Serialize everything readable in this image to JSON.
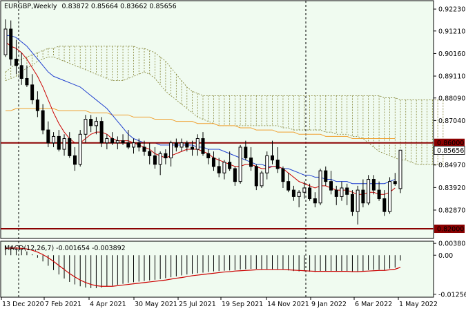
{
  "header": {
    "symbol": "EURGBP,Weekly",
    "ohlc": "0.83872 0.85664 0.83662 0.85656"
  },
  "macd": {
    "label": "MACD(12,26,7) -0.001654 -0.003892"
  },
  "colors": {
    "background": "#f0fbf0",
    "candle_up": "#ffffff",
    "candle_down": "#000000",
    "tenkan": "#cc0000",
    "kijun": "#2040d0",
    "ma_long": "#f0a030",
    "cloud": "#808030",
    "level": "#8b0000",
    "macd_signal": "#cc0000"
  },
  "chart_data": [
    {
      "type": "candlestick",
      "title": "EURGBP,Weekly",
      "ylim": [
        0.8155,
        0.9262
      ],
      "y_ticks": [
        "0.92230",
        "0.91210",
        "0.90160",
        "0.89110",
        "0.88090",
        "0.87040",
        "0.86000",
        "0.85656",
        "0.84970",
        "0.83920",
        "0.82870",
        "0.82000"
      ],
      "x_ticks": [
        "13 Dec 2020",
        "7 Feb 2021",
        "4 Apr 2021",
        "30 May 2021",
        "25 Jul 2021",
        "19 Sep 2021",
        "14 Nov 2021",
        "9 Jan 2022",
        "6 Mar 2022",
        "1 May 2022"
      ],
      "levels": [
        {
          "value": 0.86,
          "label": "0.86000"
        },
        {
          "value": 0.82,
          "label": "0.82000"
        }
      ],
      "current_price": {
        "value": 0.85656,
        "label": "0.85656"
      },
      "series_ohlc": [
        [
          0.901,
          0.9175,
          0.9,
          0.913
        ],
        [
          0.913,
          0.917,
          0.896,
          0.899
        ],
        [
          0.899,
          0.908,
          0.892,
          0.896
        ],
        [
          0.896,
          0.902,
          0.887,
          0.89
        ],
        [
          0.89,
          0.896,
          0.886,
          0.887
        ],
        [
          0.887,
          0.892,
          0.878,
          0.88
        ],
        [
          0.88,
          0.884,
          0.872,
          0.875
        ],
        [
          0.875,
          0.878,
          0.864,
          0.866
        ],
        [
          0.866,
          0.87,
          0.858,
          0.86
        ],
        [
          0.86,
          0.865,
          0.858,
          0.863
        ],
        [
          0.863,
          0.866,
          0.856,
          0.857
        ],
        [
          0.857,
          0.864,
          0.854,
          0.862
        ],
        [
          0.862,
          0.865,
          0.853,
          0.854
        ],
        [
          0.854,
          0.858,
          0.847,
          0.85
        ],
        [
          0.85,
          0.866,
          0.849,
          0.864
        ],
        [
          0.864,
          0.873,
          0.86,
          0.871
        ],
        [
          0.871,
          0.873,
          0.865,
          0.868
        ],
        [
          0.868,
          0.872,
          0.864,
          0.87
        ],
        [
          0.87,
          0.872,
          0.858,
          0.86
        ],
        [
          0.86,
          0.864,
          0.857,
          0.862
        ],
        [
          0.862,
          0.865,
          0.859,
          0.86
        ],
        [
          0.86,
          0.863,
          0.857,
          0.861
        ],
        [
          0.861,
          0.864,
          0.859,
          0.86
        ],
        [
          0.86,
          0.866,
          0.857,
          0.858
        ],
        [
          0.858,
          0.862,
          0.855,
          0.86
        ],
        [
          0.86,
          0.862,
          0.856,
          0.858
        ],
        [
          0.858,
          0.861,
          0.854,
          0.856
        ],
        [
          0.856,
          0.86,
          0.85,
          0.854
        ],
        [
          0.854,
          0.858,
          0.848,
          0.85
        ],
        [
          0.85,
          0.856,
          0.845,
          0.855
        ],
        [
          0.855,
          0.857,
          0.85,
          0.853
        ],
        [
          0.853,
          0.861,
          0.849,
          0.86
        ],
        [
          0.86,
          0.862,
          0.856,
          0.858
        ],
        [
          0.858,
          0.862,
          0.856,
          0.86
        ],
        [
          0.86,
          0.861,
          0.856,
          0.858
        ],
        [
          0.858,
          0.861,
          0.854,
          0.857
        ],
        [
          0.857,
          0.864,
          0.854,
          0.862
        ],
        [
          0.862,
          0.865,
          0.854,
          0.855
        ],
        [
          0.855,
          0.857,
          0.85,
          0.853
        ],
        [
          0.853,
          0.856,
          0.847,
          0.849
        ],
        [
          0.849,
          0.853,
          0.844,
          0.846
        ],
        [
          0.846,
          0.852,
          0.843,
          0.851
        ],
        [
          0.851,
          0.856,
          0.847,
          0.848
        ],
        [
          0.848,
          0.849,
          0.84,
          0.842
        ],
        [
          0.842,
          0.859,
          0.841,
          0.858
        ],
        [
          0.858,
          0.861,
          0.852,
          0.853
        ],
        [
          0.853,
          0.858,
          0.847,
          0.849
        ],
        [
          0.849,
          0.85,
          0.838,
          0.84
        ],
        [
          0.84,
          0.847,
          0.839,
          0.846
        ],
        [
          0.846,
          0.856,
          0.843,
          0.854
        ],
        [
          0.854,
          0.861,
          0.85,
          0.852
        ],
        [
          0.852,
          0.858,
          0.846,
          0.848
        ],
        [
          0.848,
          0.849,
          0.839,
          0.842
        ],
        [
          0.842,
          0.846,
          0.837,
          0.838
        ],
        [
          0.838,
          0.84,
          0.833,
          0.835
        ],
        [
          0.835,
          0.838,
          0.83,
          0.837
        ],
        [
          0.837,
          0.842,
          0.834,
          0.839
        ],
        [
          0.839,
          0.841,
          0.833,
          0.834
        ],
        [
          0.834,
          0.837,
          0.83,
          0.832
        ],
        [
          0.832,
          0.848,
          0.831,
          0.847
        ],
        [
          0.847,
          0.849,
          0.84,
          0.842
        ],
        [
          0.842,
          0.847,
          0.836,
          0.838
        ],
        [
          0.838,
          0.84,
          0.831,
          0.835
        ],
        [
          0.835,
          0.842,
          0.833,
          0.839
        ],
        [
          0.839,
          0.841,
          0.831,
          0.836
        ],
        [
          0.836,
          0.838,
          0.826,
          0.828
        ],
        [
          0.828,
          0.84,
          0.822,
          0.838
        ],
        [
          0.838,
          0.843,
          0.83,
          0.832
        ],
        [
          0.832,
          0.845,
          0.831,
          0.843
        ],
        [
          0.843,
          0.845,
          0.836,
          0.838
        ],
        [
          0.838,
          0.842,
          0.833,
          0.834
        ],
        [
          0.834,
          0.838,
          0.826,
          0.828
        ],
        [
          0.828,
          0.844,
          0.827,
          0.842
        ],
        [
          0.842,
          0.846,
          0.84,
          0.841
        ],
        [
          0.8387,
          0.8566,
          0.8366,
          0.8566
        ]
      ],
      "tenkan": [
        0.907,
        0.905,
        0.904,
        0.902,
        0.899,
        0.895,
        0.891,
        0.886,
        0.88,
        0.874,
        0.869,
        0.865,
        0.862,
        0.86,
        0.86,
        0.862,
        0.864,
        0.865,
        0.865,
        0.864,
        0.862,
        0.861,
        0.861,
        0.861,
        0.86,
        0.859,
        0.858,
        0.857,
        0.855,
        0.854,
        0.853,
        0.854,
        0.855,
        0.856,
        0.857,
        0.857,
        0.857,
        0.856,
        0.855,
        0.853,
        0.852,
        0.851,
        0.85,
        0.849,
        0.849,
        0.85,
        0.85,
        0.849,
        0.848,
        0.848,
        0.849,
        0.849,
        0.848,
        0.846,
        0.844,
        0.842,
        0.841,
        0.84,
        0.839,
        0.84,
        0.84,
        0.839,
        0.838,
        0.838,
        0.838,
        0.837,
        0.836,
        0.836,
        0.837,
        0.837,
        0.836,
        0.836,
        0.837,
        0.839
      ],
      "kijun": [
        0.91,
        0.91,
        0.909,
        0.907,
        0.905,
        0.902,
        0.899,
        0.896,
        0.893,
        0.891,
        0.89,
        0.889,
        0.888,
        0.887,
        0.886,
        0.884,
        0.882,
        0.88,
        0.878,
        0.876,
        0.873,
        0.87,
        0.867,
        0.864,
        0.862,
        0.861,
        0.86,
        0.86,
        0.86,
        0.859,
        0.859,
        0.859,
        0.859,
        0.859,
        0.859,
        0.859,
        0.858,
        0.858,
        0.857,
        0.857,
        0.857,
        0.856,
        0.855,
        0.854,
        0.853,
        0.852,
        0.851,
        0.85,
        0.85,
        0.849,
        0.849,
        0.849,
        0.848,
        0.848,
        0.847,
        0.846,
        0.845,
        0.845,
        0.844,
        0.844,
        0.843,
        0.843,
        0.842,
        0.842,
        0.842,
        0.841,
        0.841,
        0.841,
        0.841,
        0.841,
        0.841,
        0.841,
        0.842,
        0.843
      ],
      "ma_long": [
        0.875,
        0.875,
        0.876,
        0.876,
        0.876,
        0.876,
        0.876,
        0.876,
        0.876,
        0.876,
        0.875,
        0.875,
        0.875,
        0.875,
        0.875,
        0.875,
        0.874,
        0.874,
        0.874,
        0.874,
        0.873,
        0.873,
        0.873,
        0.873,
        0.872,
        0.872,
        0.872,
        0.872,
        0.871,
        0.871,
        0.871,
        0.871,
        0.87,
        0.87,
        0.87,
        0.87,
        0.869,
        0.869,
        0.869,
        0.869,
        0.868,
        0.868,
        0.868,
        0.868,
        0.867,
        0.867,
        0.867,
        0.866,
        0.866,
        0.866,
        0.866,
        0.865,
        0.865,
        0.865,
        0.865,
        0.864,
        0.864,
        0.864,
        0.864,
        0.864,
        0.863,
        0.863,
        0.863,
        0.863,
        0.863,
        0.862,
        0.862,
        0.862,
        0.862,
        0.862,
        0.862,
        0.862,
        0.862,
        0.862
      ],
      "cloud_upper": [
        0.893,
        0.895,
        0.897,
        0.899,
        0.9,
        0.901,
        0.902,
        0.903,
        0.904,
        0.904,
        0.905,
        0.905,
        0.905,
        0.905,
        0.905,
        0.905,
        0.905,
        0.905,
        0.905,
        0.905,
        0.905,
        0.905,
        0.905,
        0.905,
        0.905,
        0.904,
        0.904,
        0.903,
        0.902,
        0.9,
        0.898,
        0.895,
        0.892,
        0.889,
        0.886,
        0.884,
        0.883,
        0.882,
        0.882,
        0.882,
        0.882,
        0.882,
        0.882,
        0.882,
        0.882,
        0.882,
        0.882,
        0.882,
        0.882,
        0.882,
        0.882,
        0.882,
        0.882,
        0.882,
        0.882,
        0.882,
        0.882,
        0.882,
        0.882,
        0.882,
        0.882,
        0.882,
        0.882,
        0.882,
        0.882,
        0.882,
        0.882,
        0.882,
        0.882,
        0.882,
        0.882,
        0.881,
        0.881,
        0.881,
        0.88,
        0.88,
        0.88,
        0.88,
        0.88,
        0.88,
        0.88,
        0.88,
        0.88
      ],
      "cloud_lower": [
        0.889,
        0.89,
        0.891,
        0.893,
        0.895,
        0.896,
        0.898,
        0.899,
        0.9,
        0.9,
        0.899,
        0.898,
        0.897,
        0.896,
        0.895,
        0.894,
        0.893,
        0.892,
        0.891,
        0.89,
        0.889,
        0.889,
        0.889,
        0.89,
        0.891,
        0.892,
        0.893,
        0.892,
        0.89,
        0.887,
        0.884,
        0.882,
        0.88,
        0.878,
        0.876,
        0.874,
        0.872,
        0.871,
        0.87,
        0.869,
        0.868,
        0.868,
        0.868,
        0.868,
        0.868,
        0.868,
        0.868,
        0.868,
        0.868,
        0.868,
        0.868,
        0.868,
        0.867,
        0.867,
        0.866,
        0.866,
        0.866,
        0.866,
        0.866,
        0.866,
        0.865,
        0.865,
        0.864,
        0.864,
        0.864,
        0.863,
        0.863,
        0.862,
        0.86,
        0.858,
        0.856,
        0.855,
        0.854,
        0.853,
        0.852,
        0.852,
        0.851,
        0.85,
        0.85,
        0.85,
        0.85,
        0.85,
        0.85
      ]
    },
    {
      "type": "bar",
      "title": "MACD(12,26,7) -0.001654 -0.003892",
      "ylim": [
        -0.0135,
        0.0045
      ],
      "y_ticks": [
        "0.003808",
        "0.00",
        "-0.012563"
      ],
      "histogram": [
        0.003,
        0.0028,
        0.0025,
        0.002,
        0.0012,
        0.0003,
        -0.0008,
        -0.002,
        -0.0034,
        -0.0048,
        -0.0062,
        -0.0075,
        -0.0086,
        -0.0094,
        -0.01,
        -0.0104,
        -0.0106,
        -0.0106,
        -0.0104,
        -0.0101,
        -0.0098,
        -0.0095,
        -0.0092,
        -0.0089,
        -0.0087,
        -0.0085,
        -0.0083,
        -0.0081,
        -0.0079,
        -0.0077,
        -0.0074,
        -0.0071,
        -0.0068,
        -0.0065,
        -0.0062,
        -0.006,
        -0.0058,
        -0.0056,
        -0.0054,
        -0.0052,
        -0.0051,
        -0.005,
        -0.0049,
        -0.0048,
        -0.0046,
        -0.0045,
        -0.0044,
        -0.0044,
        -0.0045,
        -0.0045,
        -0.0045,
        -0.0046,
        -0.0047,
        -0.0049,
        -0.0051,
        -0.0052,
        -0.0052,
        -0.0053,
        -0.0054,
        -0.0052,
        -0.0051,
        -0.0052,
        -0.0053,
        -0.0052,
        -0.0052,
        -0.0054,
        -0.0052,
        -0.0052,
        -0.0048,
        -0.0047,
        -0.0047,
        -0.0048,
        -0.0043,
        -0.004,
        -0.0017
      ],
      "signal": [
        0.0022,
        0.0023,
        0.0023,
        0.0022,
        0.002,
        0.0016,
        0.001,
        0.0002,
        -0.0008,
        -0.002,
        -0.0033,
        -0.0046,
        -0.0059,
        -0.007,
        -0.008,
        -0.0088,
        -0.0094,
        -0.0098,
        -0.01,
        -0.01,
        -0.01,
        -0.0098,
        -0.0096,
        -0.0094,
        -0.0092,
        -0.009,
        -0.0088,
        -0.0086,
        -0.0084,
        -0.0082,
        -0.008,
        -0.0077,
        -0.0074,
        -0.0072,
        -0.0069,
        -0.0066,
        -0.0064,
        -0.0062,
        -0.006,
        -0.0058,
        -0.0056,
        -0.0054,
        -0.0053,
        -0.0051,
        -0.005,
        -0.0049,
        -0.0048,
        -0.0047,
        -0.0046,
        -0.0046,
        -0.0046,
        -0.0046,
        -0.0046,
        -0.0047,
        -0.0048,
        -0.0049,
        -0.005,
        -0.0051,
        -0.0052,
        -0.0052,
        -0.0052,
        -0.0052,
        -0.0052,
        -0.0052,
        -0.0052,
        -0.0053,
        -0.0053,
        -0.0052,
        -0.0051,
        -0.005,
        -0.0049,
        -0.0049,
        -0.0047,
        -0.0045,
        -0.0039
      ]
    }
  ]
}
